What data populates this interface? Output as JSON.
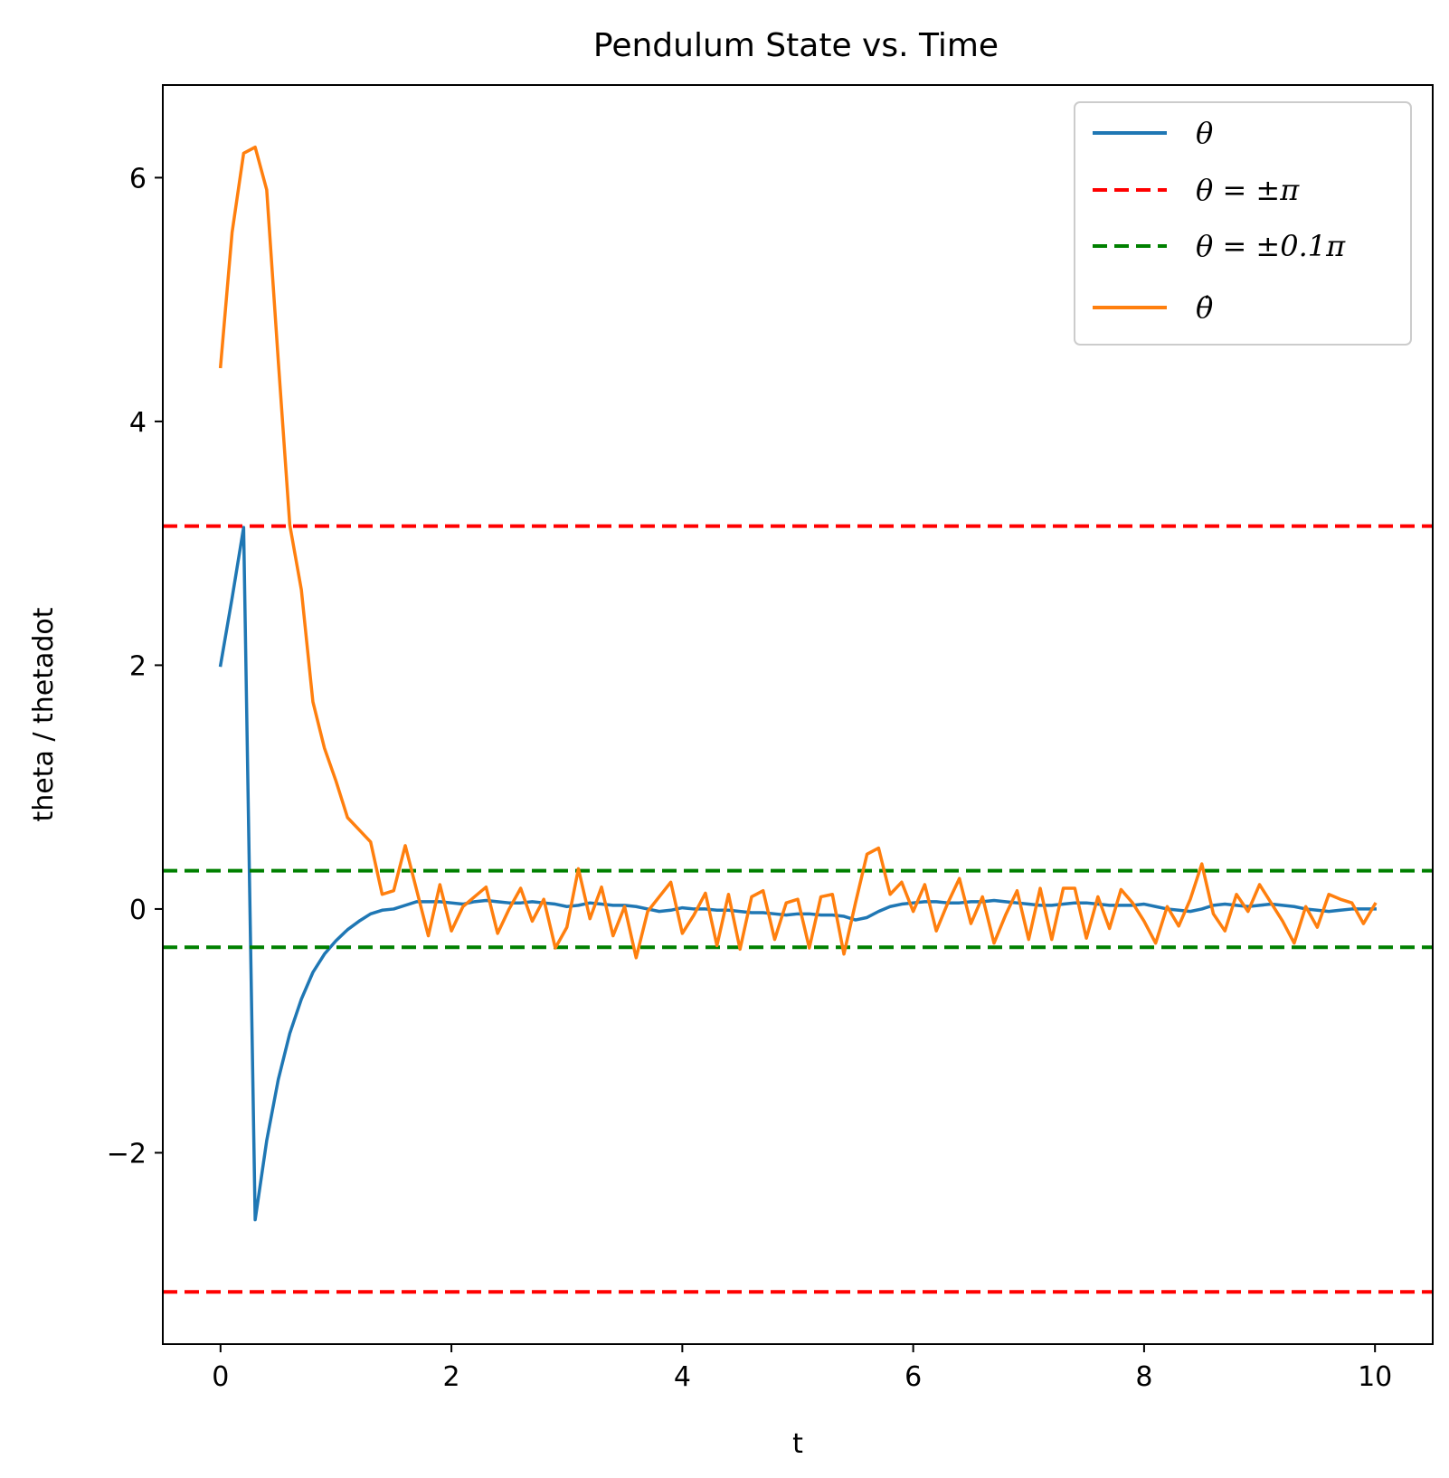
{
  "chart_data": {
    "type": "line",
    "title": "Pendulum State vs. Time",
    "xlabel": "t",
    "ylabel": "theta / thetadot",
    "xlim": [
      -0.5,
      10.5
    ],
    "ylim": [
      -3.57,
      6.76
    ],
    "xticks": [
      0,
      2,
      4,
      6,
      8,
      10
    ],
    "xtick_labels": [
      "0",
      "2",
      "4",
      "6",
      "8",
      "10"
    ],
    "yticks": [
      -2,
      0,
      2,
      4,
      6
    ],
    "ytick_labels": [
      "−2",
      "0",
      "2",
      "4",
      "6"
    ],
    "grid": false,
    "legend_position": "top-right",
    "x": [
      0.0,
      0.1,
      0.2,
      0.3,
      0.4,
      0.5,
      0.6,
      0.7,
      0.8,
      0.9,
      1.0,
      1.1,
      1.2,
      1.3,
      1.4,
      1.5,
      1.6,
      1.7,
      1.8,
      1.9,
      2.0,
      2.1,
      2.2,
      2.3,
      2.4,
      2.5,
      2.6,
      2.7,
      2.8,
      2.9,
      3.0,
      3.1,
      3.2,
      3.3,
      3.4,
      3.5,
      3.6,
      3.7,
      3.8,
      3.9,
      4.0,
      4.1,
      4.2,
      4.3,
      4.4,
      4.5,
      4.6,
      4.7,
      4.8,
      4.9,
      5.0,
      5.1,
      5.2,
      5.3,
      5.4,
      5.5,
      5.6,
      5.7,
      5.8,
      5.9,
      6.0,
      6.1,
      6.2,
      6.3,
      6.4,
      6.5,
      6.6,
      6.7,
      6.8,
      6.9,
      7.0,
      7.1,
      7.2,
      7.3,
      7.4,
      7.5,
      7.6,
      7.7,
      7.8,
      7.9,
      8.0,
      8.1,
      8.2,
      8.3,
      8.4,
      8.5,
      8.6,
      8.7,
      8.8,
      8.9,
      9.0,
      9.1,
      9.2,
      9.3,
      9.4,
      9.5,
      9.6,
      9.7,
      9.8,
      9.9,
      10.0
    ],
    "series": [
      {
        "name": "θ",
        "color": "#1f77b4",
        "style": "solid",
        "values": [
          2.0,
          2.55,
          3.13,
          -2.55,
          -1.9,
          -1.4,
          -1.02,
          -0.74,
          -0.52,
          -0.37,
          -0.26,
          -0.17,
          -0.1,
          -0.04,
          -0.01,
          0.0,
          0.03,
          0.06,
          0.06,
          0.06,
          0.05,
          0.04,
          0.06,
          0.07,
          0.06,
          0.05,
          0.05,
          0.06,
          0.05,
          0.04,
          0.02,
          0.03,
          0.05,
          0.04,
          0.03,
          0.03,
          0.02,
          0.0,
          -0.02,
          -0.01,
          0.01,
          0.0,
          0.0,
          -0.01,
          -0.01,
          -0.02,
          -0.03,
          -0.03,
          -0.04,
          -0.05,
          -0.04,
          -0.04,
          -0.05,
          -0.05,
          -0.06,
          -0.09,
          -0.07,
          -0.02,
          0.02,
          0.04,
          0.05,
          0.06,
          0.06,
          0.05,
          0.05,
          0.06,
          0.06,
          0.07,
          0.06,
          0.05,
          0.04,
          0.03,
          0.03,
          0.04,
          0.05,
          0.05,
          0.04,
          0.03,
          0.03,
          0.03,
          0.04,
          0.02,
          0.0,
          -0.01,
          -0.02,
          0.0,
          0.03,
          0.04,
          0.03,
          0.02,
          0.03,
          0.04,
          0.03,
          0.02,
          0.0,
          -0.01,
          -0.02,
          -0.01,
          0.0,
          0.0,
          0.0
        ]
      },
      {
        "name": "θ = ±π",
        "color": "#ff0000",
        "style": "dashed",
        "hlines": [
          3.14159,
          -3.14159
        ]
      },
      {
        "name": "θ = ±0.1π",
        "color": "#008000",
        "style": "dashed",
        "hlines": [
          0.314159,
          -0.314159
        ]
      },
      {
        "name": "θ̇",
        "color": "#ff7f0e",
        "style": "solid",
        "values": [
          4.45,
          5.55,
          6.2,
          6.25,
          5.9,
          4.5,
          3.15,
          2.62,
          1.7,
          1.32,
          1.05,
          0.75,
          0.65,
          0.55,
          0.12,
          0.15,
          0.52,
          0.15,
          -0.22,
          0.2,
          -0.18,
          0.02,
          0.1,
          0.18,
          -0.2,
          0.0,
          0.17,
          -0.1,
          0.08,
          -0.32,
          -0.15,
          0.33,
          -0.08,
          0.18,
          -0.22,
          0.02,
          -0.4,
          -0.02,
          0.1,
          0.22,
          -0.2,
          -0.05,
          0.13,
          -0.3,
          0.12,
          -0.33,
          0.1,
          0.15,
          -0.25,
          0.05,
          0.08,
          -0.32,
          0.1,
          0.12,
          -0.37,
          0.05,
          0.45,
          0.5,
          0.12,
          0.22,
          -0.02,
          0.2,
          -0.18,
          0.05,
          0.25,
          -0.12,
          0.1,
          -0.28,
          -0.05,
          0.15,
          -0.25,
          0.17,
          -0.25,
          0.17,
          0.17,
          -0.24,
          0.1,
          -0.16,
          0.16,
          0.05,
          -0.1,
          -0.28,
          0.02,
          -0.14,
          0.08,
          0.37,
          -0.04,
          -0.18,
          0.12,
          -0.02,
          0.2,
          0.05,
          -0.1,
          -0.28,
          0.02,
          -0.15,
          0.12,
          0.08,
          0.05,
          -0.12,
          0.04
        ]
      }
    ]
  }
}
